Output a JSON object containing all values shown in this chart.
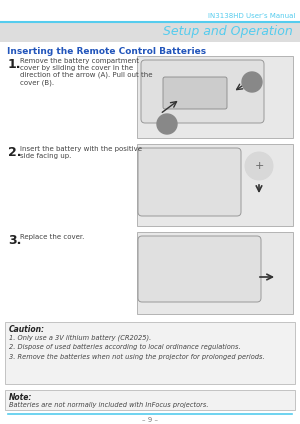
{
  "title_text": "IN3138HD User’s Manual",
  "section_title": "Setup and Operation",
  "section_heading": "Inserting the Remote Control Batteries",
  "blue_color": "#55CCEE",
  "section_bg_color": "#DDDDDD",
  "step1_num": "1.",
  "step1_text": "Remove the battery compartment\ncover by sliding the cover in the\ndirection of the arrow (A). Pull out the\ncover (B).",
  "step2_num": "2.",
  "step2_text": "Insert the battery with the positive\nside facing up.",
  "step3_num": "3.",
  "step3_text": "Replace the cover.",
  "caution_title": "Caution:",
  "caution_line1": "1. Only use a 3V lithium battery (CR2025).",
  "caution_line2": "2. Dispose of used batteries according to local ordinance regulations.",
  "caution_line3": "3. Remove the batteries when not using the projector for prolonged periods.",
  "note_title": "Note:",
  "note_text": "Batteries are not normally included with InFocus projectors.",
  "footer_text": "– 9 –",
  "bg_color": "#FFFFFF",
  "text_color": "#444444",
  "dark_text": "#222222",
  "heading_color": "#2255BB",
  "gray_img": "#E8E8E8",
  "img_border": "#AAAAAA",
  "box_bg": "#F2F2F2"
}
